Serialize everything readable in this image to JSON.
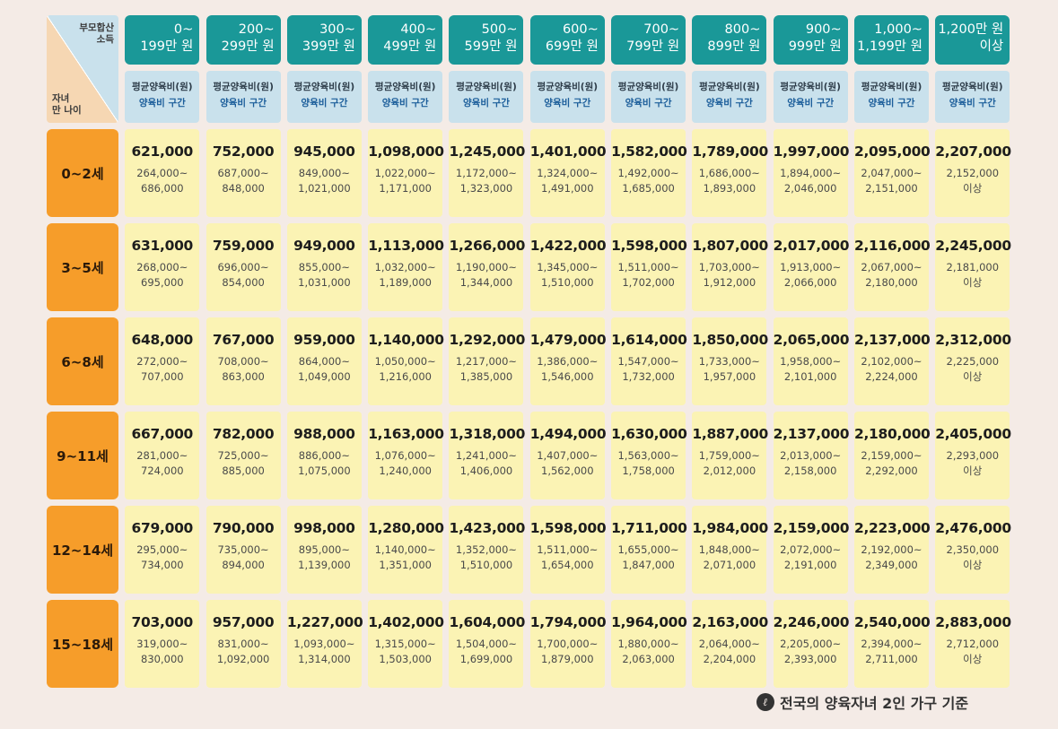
{
  "corner": {
    "income_label": "부모합산\n소득",
    "age_label": "자녀\n만 나이"
  },
  "sub_header": {
    "line1": "평균양육비(원)",
    "line2": "양육비 구간"
  },
  "income_brackets": [
    "0~\n199만 원",
    "200~\n299만 원",
    "300~\n399만 원",
    "400~\n499만 원",
    "500~\n599만 원",
    "600~\n699만 원",
    "700~\n799만 원",
    "800~\n899만 원",
    "900~\n999만 원",
    "1,000~\n1,199만 원",
    "1,200만 원\n이상"
  ],
  "rows": [
    {
      "age": "0~2세",
      "cells": [
        {
          "avg": "621,000",
          "range": "264,000~\n686,000"
        },
        {
          "avg": "752,000",
          "range": "687,000~\n848,000"
        },
        {
          "avg": "945,000",
          "range": "849,000~\n1,021,000"
        },
        {
          "avg": "1,098,000",
          "range": "1,022,000~\n1,171,000"
        },
        {
          "avg": "1,245,000",
          "range": "1,172,000~\n1,323,000"
        },
        {
          "avg": "1,401,000",
          "range": "1,324,000~\n1,491,000"
        },
        {
          "avg": "1,582,000",
          "range": "1,492,000~\n1,685,000"
        },
        {
          "avg": "1,789,000",
          "range": "1,686,000~\n1,893,000"
        },
        {
          "avg": "1,997,000",
          "range": "1,894,000~\n2,046,000"
        },
        {
          "avg": "2,095,000",
          "range": "2,047,000~\n2,151,000"
        },
        {
          "avg": "2,207,000",
          "range": "2,152,000\n이상"
        }
      ]
    },
    {
      "age": "3~5세",
      "cells": [
        {
          "avg": "631,000",
          "range": "268,000~\n695,000"
        },
        {
          "avg": "759,000",
          "range": "696,000~\n854,000"
        },
        {
          "avg": "949,000",
          "range": "855,000~\n1,031,000"
        },
        {
          "avg": "1,113,000",
          "range": "1,032,000~\n1,189,000"
        },
        {
          "avg": "1,266,000",
          "range": "1,190,000~\n1,344,000"
        },
        {
          "avg": "1,422,000",
          "range": "1,345,000~\n1,510,000"
        },
        {
          "avg": "1,598,000",
          "range": "1,511,000~\n1,702,000"
        },
        {
          "avg": "1,807,000",
          "range": "1,703,000~\n1,912,000"
        },
        {
          "avg": "2,017,000",
          "range": "1,913,000~\n2,066,000"
        },
        {
          "avg": "2,116,000",
          "range": "2,067,000~\n2,180,000"
        },
        {
          "avg": "2,245,000",
          "range": "2,181,000\n이상"
        }
      ]
    },
    {
      "age": "6~8세",
      "cells": [
        {
          "avg": "648,000",
          "range": "272,000~\n707,000"
        },
        {
          "avg": "767,000",
          "range": "708,000~\n863,000"
        },
        {
          "avg": "959,000",
          "range": "864,000~\n1,049,000"
        },
        {
          "avg": "1,140,000",
          "range": "1,050,000~\n1,216,000"
        },
        {
          "avg": "1,292,000",
          "range": "1,217,000~\n1,385,000"
        },
        {
          "avg": "1,479,000",
          "range": "1,386,000~\n1,546,000"
        },
        {
          "avg": "1,614,000",
          "range": "1,547,000~\n1,732,000"
        },
        {
          "avg": "1,850,000",
          "range": "1,733,000~\n1,957,000"
        },
        {
          "avg": "2,065,000",
          "range": "1,958,000~\n2,101,000"
        },
        {
          "avg": "2,137,000",
          "range": "2,102,000~\n2,224,000"
        },
        {
          "avg": "2,312,000",
          "range": "2,225,000\n이상"
        }
      ]
    },
    {
      "age": "9~11세",
      "cells": [
        {
          "avg": "667,000",
          "range": "281,000~\n724,000"
        },
        {
          "avg": "782,000",
          "range": "725,000~\n885,000"
        },
        {
          "avg": "988,000",
          "range": "886,000~\n1,075,000"
        },
        {
          "avg": "1,163,000",
          "range": "1,076,000~\n1,240,000"
        },
        {
          "avg": "1,318,000",
          "range": "1,241,000~\n1,406,000"
        },
        {
          "avg": "1,494,000",
          "range": "1,407,000~\n1,562,000"
        },
        {
          "avg": "1,630,000",
          "range": "1,563,000~\n1,758,000"
        },
        {
          "avg": "1,887,000",
          "range": "1,759,000~\n2,012,000"
        },
        {
          "avg": "2,137,000",
          "range": "2,013,000~\n2,158,000"
        },
        {
          "avg": "2,180,000",
          "range": "2,159,000~\n2,292,000"
        },
        {
          "avg": "2,405,000",
          "range": "2,293,000\n이상"
        }
      ]
    },
    {
      "age": "12~14세",
      "cells": [
        {
          "avg": "679,000",
          "range": "295,000~\n734,000"
        },
        {
          "avg": "790,000",
          "range": "735,000~\n894,000"
        },
        {
          "avg": "998,000",
          "range": "895,000~\n1,139,000"
        },
        {
          "avg": "1,280,000",
          "range": "1,140,000~\n1,351,000"
        },
        {
          "avg": "1,423,000",
          "range": "1,352,000~\n1,510,000"
        },
        {
          "avg": "1,598,000",
          "range": "1,511,000~\n1,654,000"
        },
        {
          "avg": "1,711,000",
          "range": "1,655,000~\n1,847,000"
        },
        {
          "avg": "1,984,000",
          "range": "1,848,000~\n2,071,000"
        },
        {
          "avg": "2,159,000",
          "range": "2,072,000~\n2,191,000"
        },
        {
          "avg": "2,223,000",
          "range": "2,192,000~\n2,349,000"
        },
        {
          "avg": "2,476,000",
          "range": "2,350,000\n이상"
        }
      ]
    },
    {
      "age": "15~18세",
      "cells": [
        {
          "avg": "703,000",
          "range": "319,000~\n830,000"
        },
        {
          "avg": "957,000",
          "range": "831,000~\n1,092,000"
        },
        {
          "avg": "1,227,000",
          "range": "1,093,000~\n1,314,000"
        },
        {
          "avg": "1,402,000",
          "range": "1,315,000~\n1,503,000"
        },
        {
          "avg": "1,604,000",
          "range": "1,504,000~\n1,699,000"
        },
        {
          "avg": "1,794,000",
          "range": "1,700,000~\n1,879,000"
        },
        {
          "avg": "1,964,000",
          "range": "1,880,000~\n2,063,000"
        },
        {
          "avg": "2,163,000",
          "range": "2,064,000~\n2,204,000"
        },
        {
          "avg": "2,246,000",
          "range": "2,205,000~\n2,393,000"
        },
        {
          "avg": "2,540,000",
          "range": "2,394,000~\n2,711,000"
        },
        {
          "avg": "2,883,000",
          "range": "2,712,000\n이상"
        }
      ]
    }
  ],
  "footnote": {
    "icon": "pen-icon",
    "mark": "ℓ",
    "text": "전국의 양육자녀 2인 가구 기준"
  },
  "colors": {
    "header_teal": "#1a9898",
    "subheader_blue": "#c9e1ec",
    "age_orange": "#f69d2a",
    "cell_yellow": "#fbf3b4",
    "background": "#f4ebe6"
  }
}
